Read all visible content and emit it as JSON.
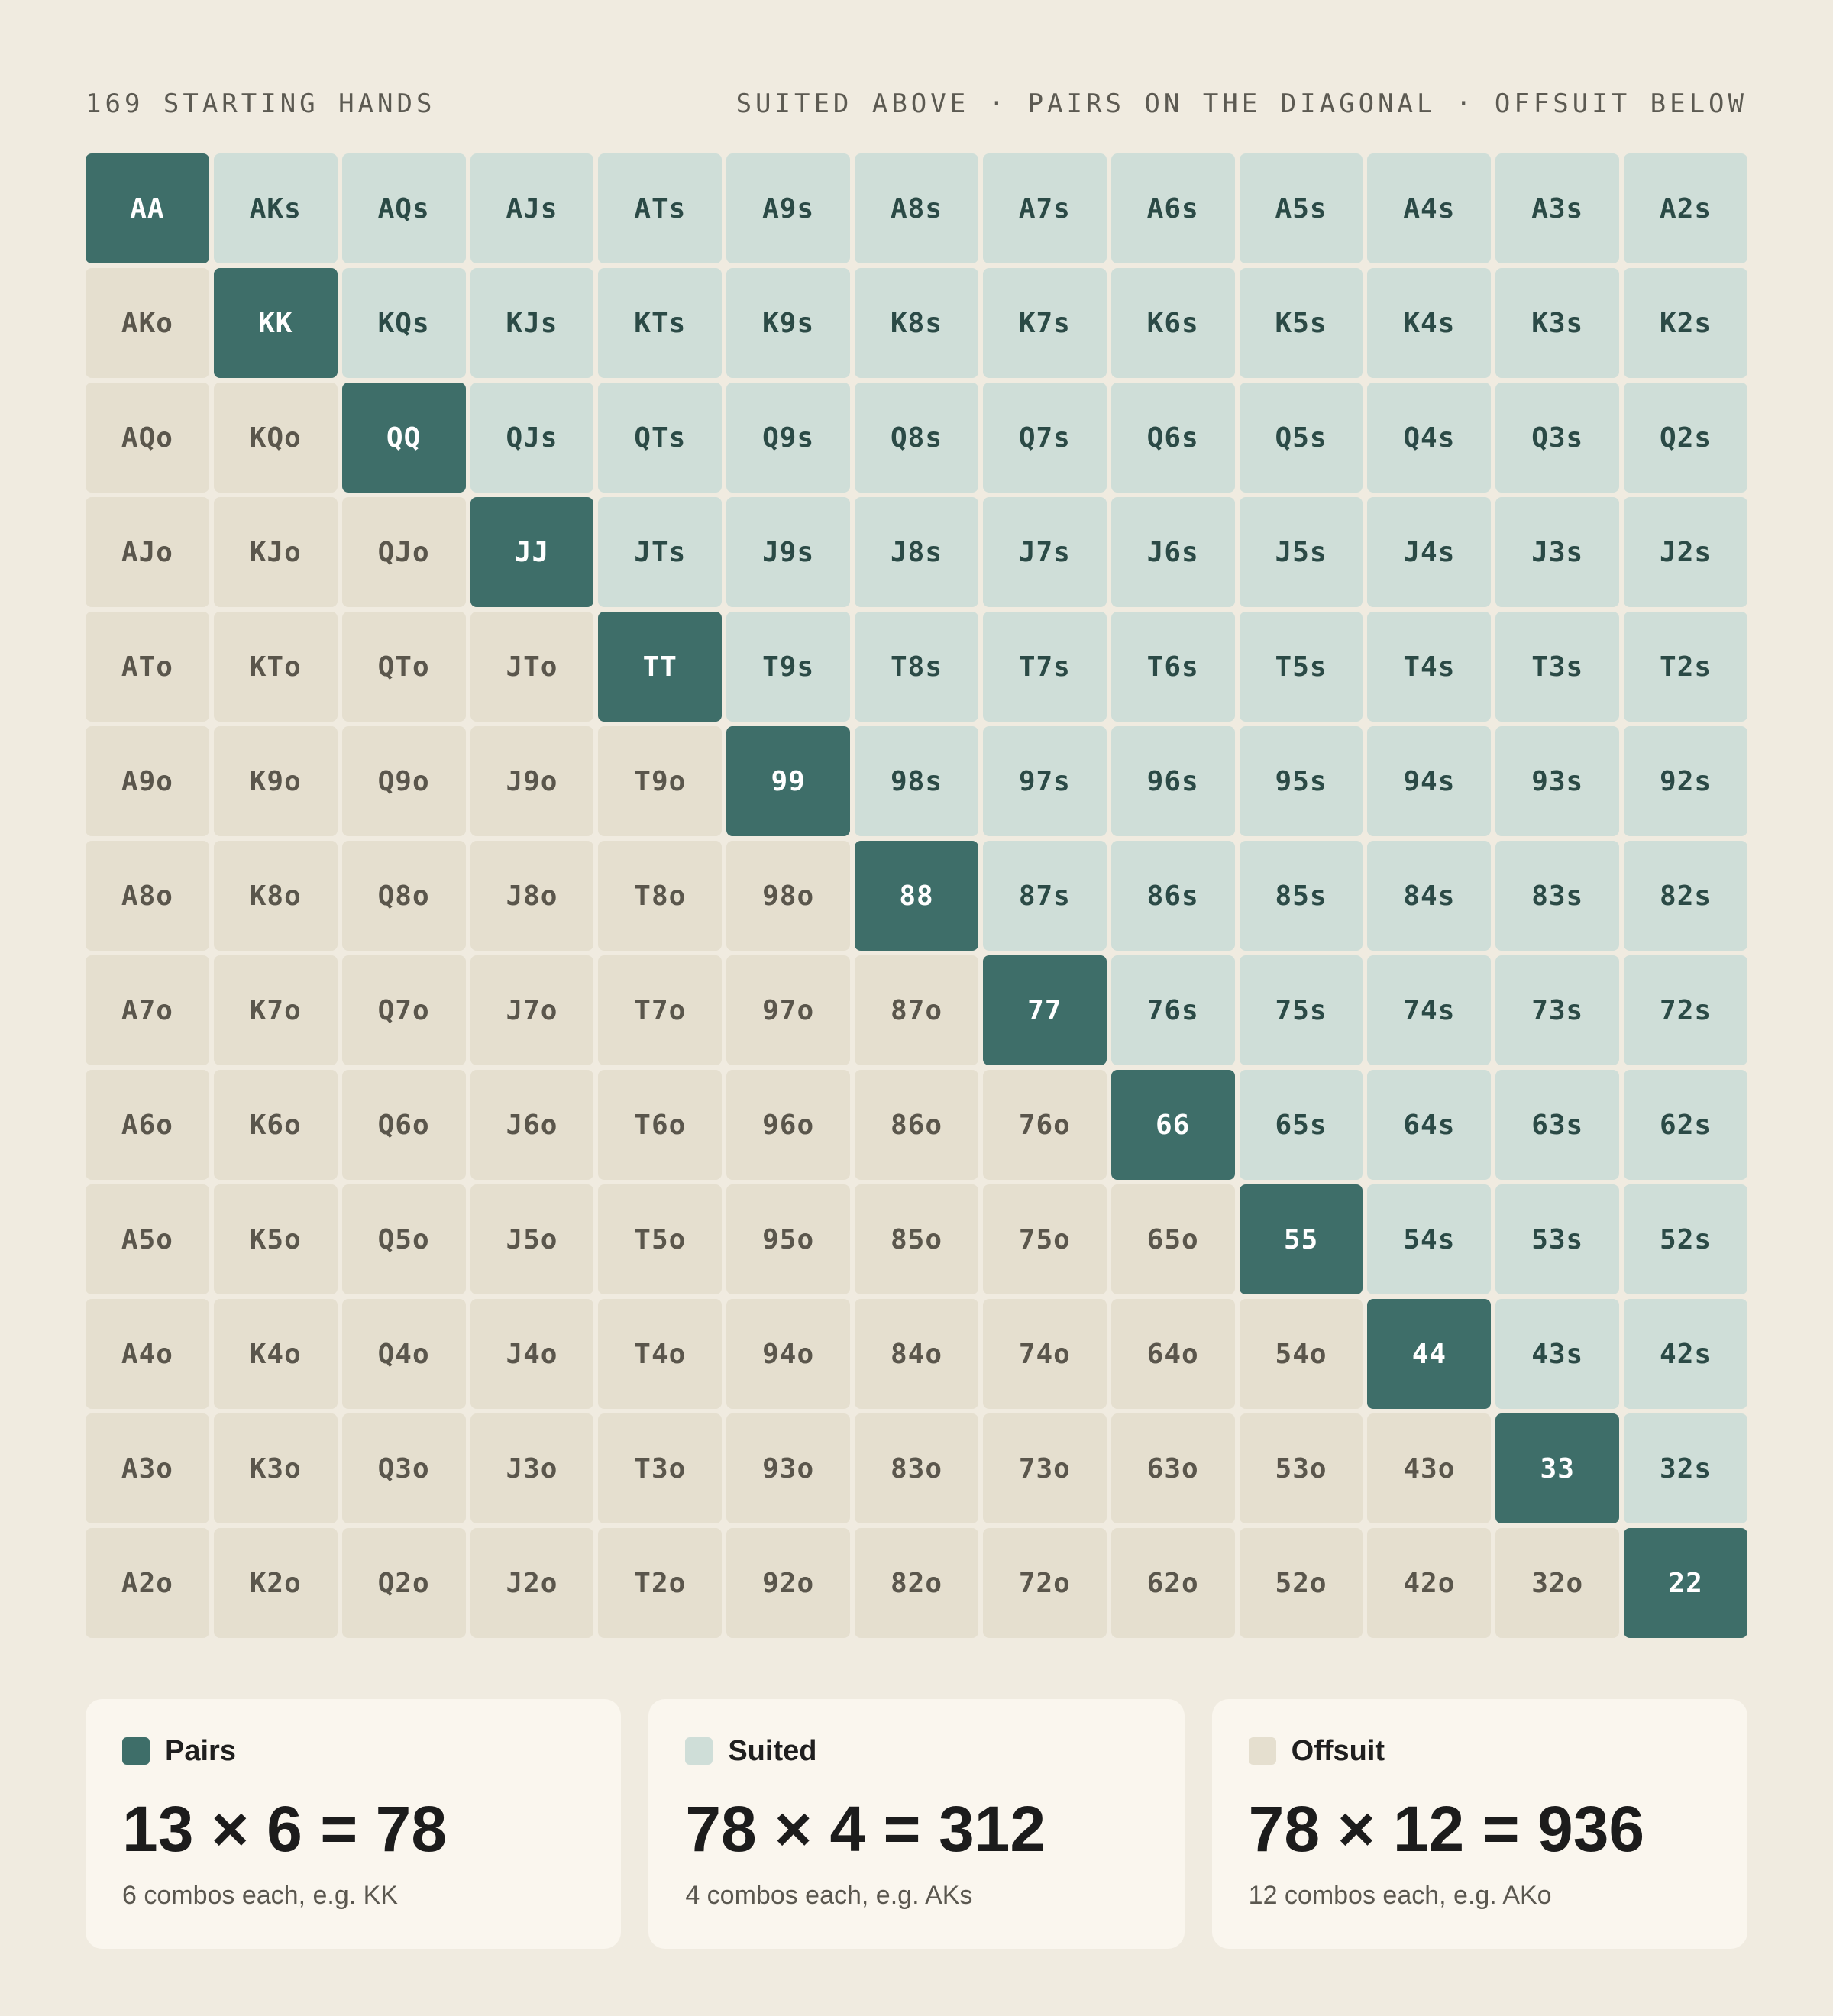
{
  "header": {
    "left": "169 STARTING HANDS",
    "right": "SUITED ABOVE · PAIRS ON THE DIAGONAL · OFFSUIT BELOW"
  },
  "ranks": [
    "A",
    "K",
    "Q",
    "J",
    "T",
    "9",
    "8",
    "7",
    "6",
    "5",
    "4",
    "3",
    "2"
  ],
  "colors": {
    "pair": "#3e6e69",
    "suited": "#cfded8",
    "offsuit": "#e5dfcf",
    "background": "#f0ebe0"
  },
  "legend": [
    {
      "key": "pair",
      "label": "Pairs",
      "formula": "13 × 6 = 78",
      "note": "6 combos each, e.g. KK"
    },
    {
      "key": "suited",
      "label": "Suited",
      "formula": "78 × 4 = 312",
      "note": "4 combos each, e.g. AKs"
    },
    {
      "key": "offsuit",
      "label": "Offsuit",
      "formula": "78 × 12 = 936",
      "note": "12 combos each, e.g. AKo"
    }
  ]
}
